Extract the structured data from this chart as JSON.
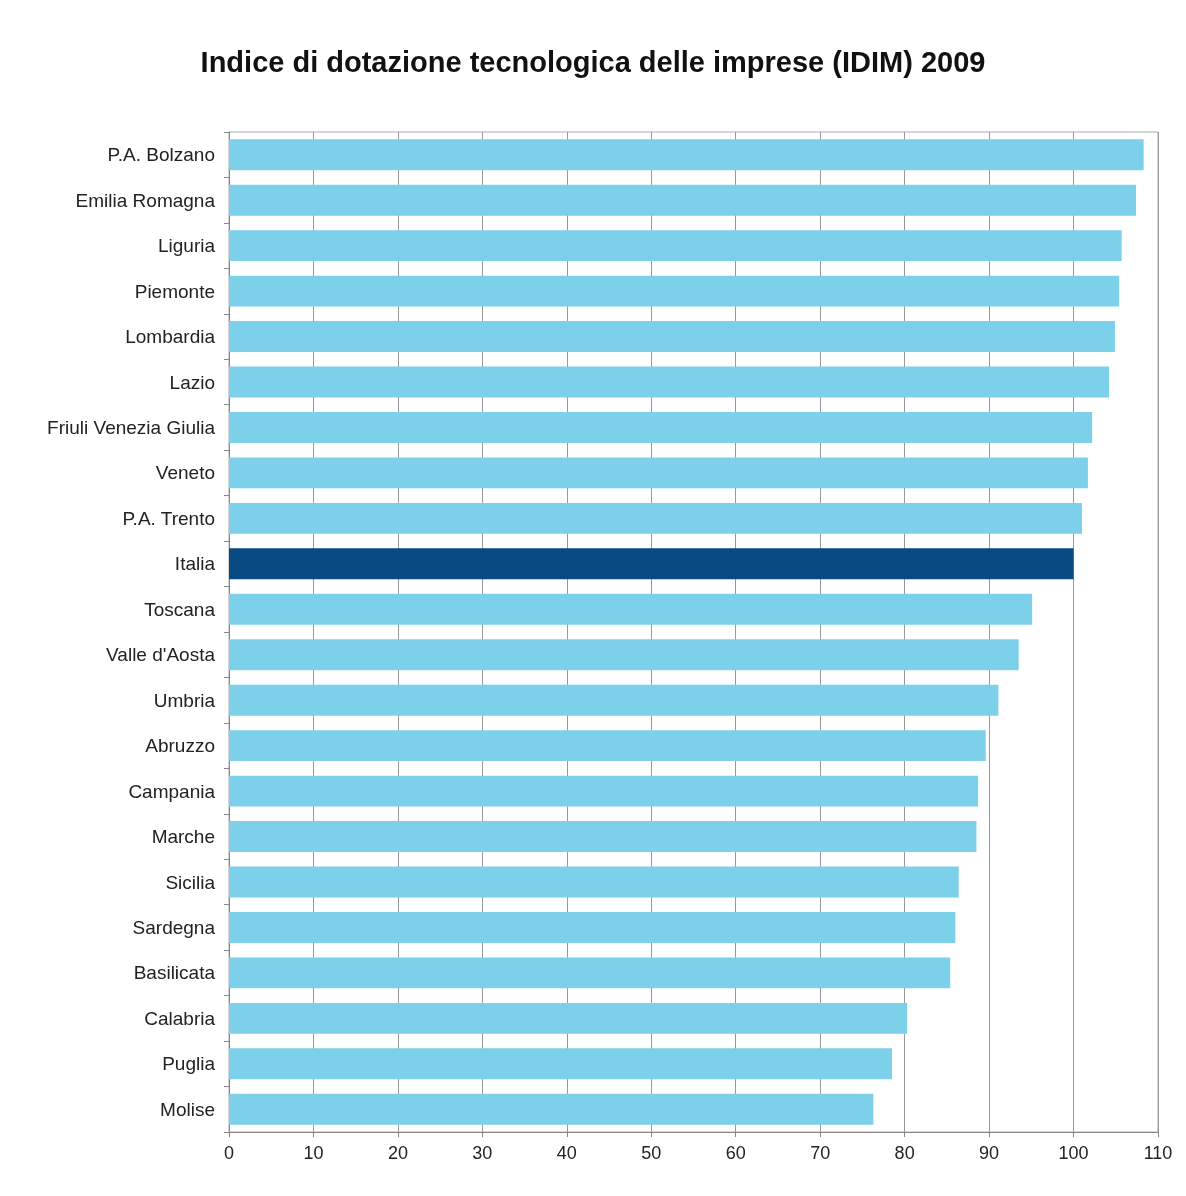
{
  "chart_data": {
    "type": "bar",
    "orientation": "horizontal",
    "title": "Indice di dotazione tecnologica delle imprese (IDIM) 2009",
    "categories": [
      "P.A. Bolzano",
      "Emilia Romagna",
      "Liguria",
      "Piemonte",
      "Lombardia",
      "Lazio",
      "Friuli Venezia Giulia",
      "Veneto",
      "P.A. Trento",
      "Italia",
      "Toscana",
      "Valle d'Aosta",
      "Umbria",
      "Abruzzo",
      "Campania",
      "Marche",
      "Sicilia",
      "Sardegna",
      "Basilicata",
      "Calabria",
      "Puglia",
      "Molise"
    ],
    "values": [
      108.3,
      107.4,
      105.7,
      105.4,
      104.9,
      104.2,
      102.2,
      101.7,
      101.0,
      100,
      95.1,
      93.5,
      91.1,
      89.6,
      88.7,
      88.5,
      86.4,
      86.0,
      85.4,
      80.3,
      78.5,
      76.3
    ],
    "colors": [
      "#7dd0ea",
      "#7dd0ea",
      "#7dd0ea",
      "#7dd0ea",
      "#7dd0ea",
      "#7dd0ea",
      "#7dd0ea",
      "#7dd0ea",
      "#7dd0ea",
      "#0a4a82",
      "#7dd0ea",
      "#7dd0ea",
      "#7dd0ea",
      "#7dd0ea",
      "#7dd0ea",
      "#7dd0ea",
      "#7dd0ea",
      "#7dd0ea",
      "#7dd0ea",
      "#7dd0ea",
      "#7dd0ea",
      "#7dd0ea"
    ],
    "xlim": [
      0,
      110
    ],
    "xticks": [
      0,
      10,
      20,
      30,
      40,
      50,
      60,
      70,
      80,
      90,
      100,
      110
    ],
    "grid": "x"
  }
}
